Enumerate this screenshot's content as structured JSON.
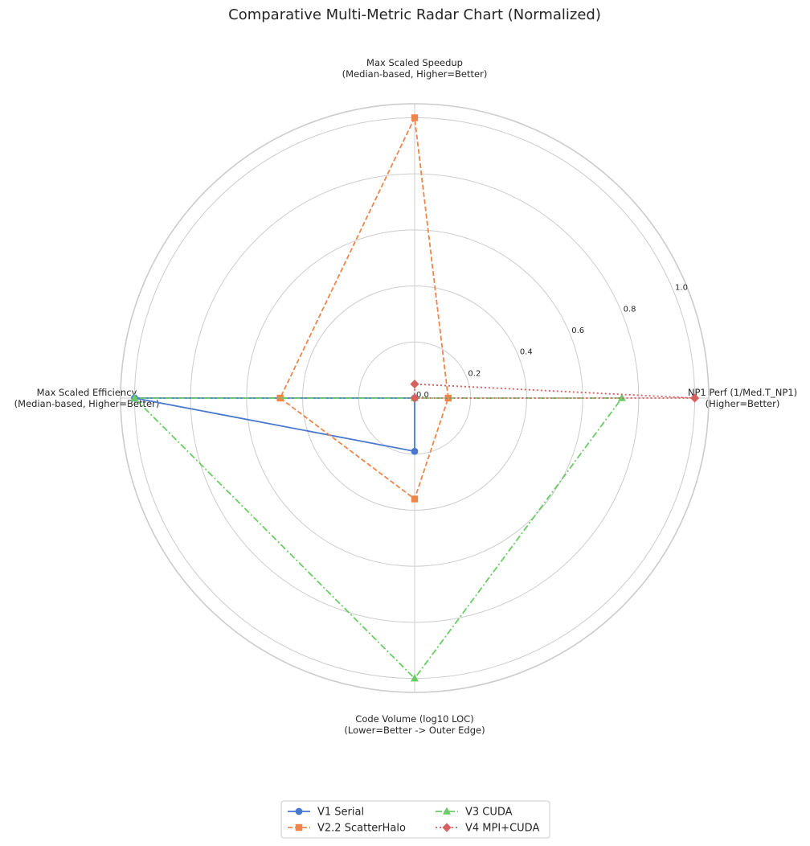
{
  "chart_data": {
    "type": "radar",
    "title": "Comparative Multi-Metric Radar Chart (Normalized)",
    "axes": [
      "NP1 Perf (1/Med.T_NP1)\n(Higher=Better)",
      "Max Scaled Speedup\n(Median-based, Higher=Better)",
      "Max Scaled Efficiency\n(Median-based, Higher=Better)",
      "Code Volume (log10 LOC)\n(Lower=Better -> Outer Edge)"
    ],
    "rlim": [
      0,
      1.05
    ],
    "r_ticks": [
      "0.0",
      "0.2",
      "0.4",
      "0.6",
      "0.8",
      "1.0"
    ],
    "grid": true,
    "legend_position": "bottom-center",
    "series": [
      {
        "name": "V1 Serial",
        "values": [
          0.0,
          0.0,
          1.0,
          0.19
        ],
        "color": "#4878d0",
        "marker": "circle",
        "linestyle": "solid"
      },
      {
        "name": "V2.2 ScatterHalo",
        "values": [
          0.12,
          1.0,
          0.48,
          0.36
        ],
        "color": "#ee854a",
        "marker": "square",
        "linestyle": "dashed"
      },
      {
        "name": "V3 CUDA",
        "values": [
          0.74,
          0.0,
          1.0,
          1.0
        ],
        "color": "#6acc64",
        "marker": "triangle",
        "linestyle": "dashdot"
      },
      {
        "name": "V4 MPI+CUDA",
        "values": [
          1.0,
          0.05,
          0.0,
          0.0
        ],
        "color": "#d65f5f",
        "marker": "diamond",
        "linestyle": "dotted"
      }
    ]
  }
}
